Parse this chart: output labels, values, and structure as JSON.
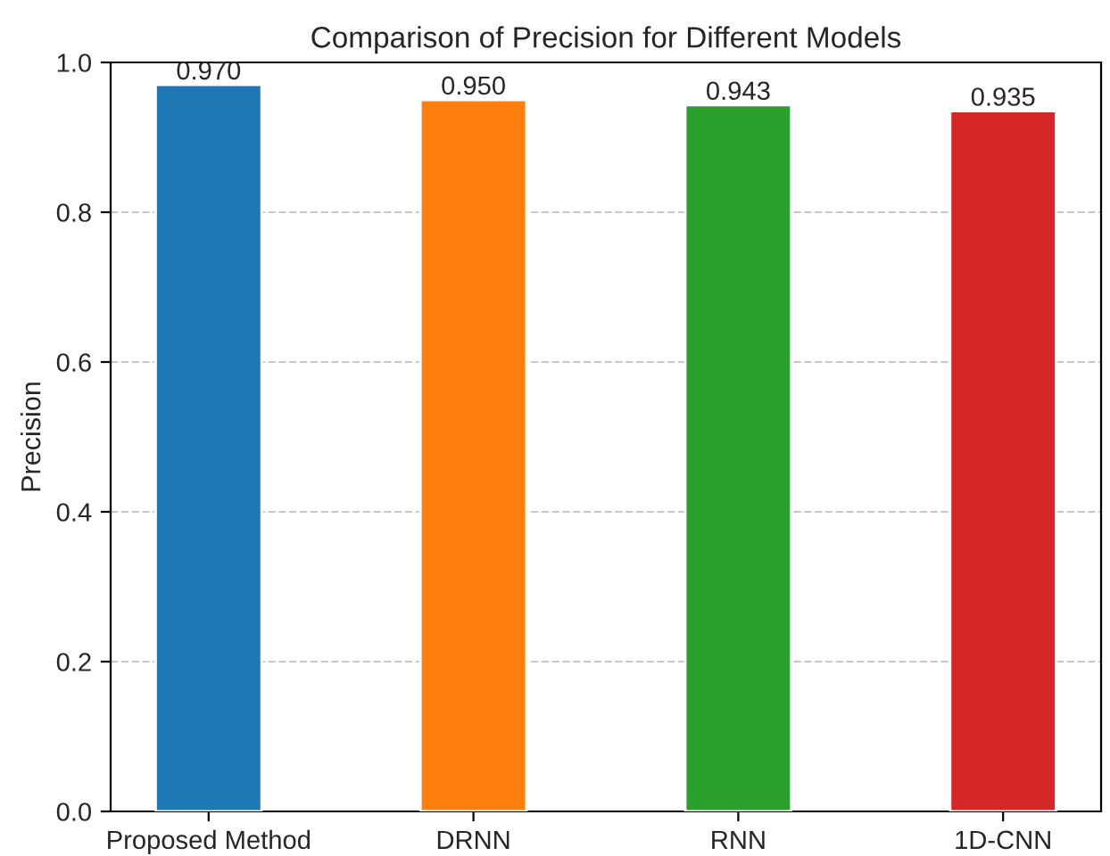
{
  "chart_data": {
    "type": "bar",
    "title": "Comparison of Precision for Different Models",
    "ylabel": "Precision",
    "categories": [
      "Proposed Method",
      "DRNN",
      "RNN",
      "1D-CNN"
    ],
    "values": [
      0.97,
      0.95,
      0.943,
      0.935
    ],
    "colors": [
      "#1f77b4",
      "#ff7f0e",
      "#2ca02c",
      "#d62728"
    ],
    "value_labels": [
      "0.970",
      "0.950",
      "0.943",
      "0.935"
    ],
    "ylim": [
      0,
      1
    ],
    "yticks": [
      {
        "value": 0,
        "label": "0.0"
      },
      {
        "value": 0.2,
        "label": "0.2"
      },
      {
        "value": 0.4,
        "label": "0.4"
      },
      {
        "value": 0.6,
        "label": "0.6"
      },
      {
        "value": 0.8,
        "label": "0.8"
      },
      {
        "value": 1,
        "label": "1.0"
      }
    ],
    "grid": "y",
    "line_style": "dashed"
  }
}
